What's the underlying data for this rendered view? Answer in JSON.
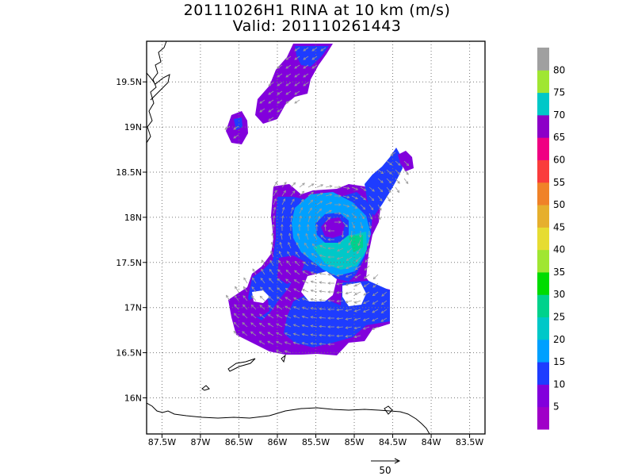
{
  "title_line1": "20111026H1 RINA at 10 km (m/s)",
  "title_line2": "Valid: 201110261443",
  "map": {
    "lon_range": [
      -87.7,
      -83.3
    ],
    "lat_range": [
      15.6,
      19.95
    ],
    "lon_ticks": [
      {
        "v": -87.5,
        "label": "87.5W"
      },
      {
        "v": -87.0,
        "label": "87W"
      },
      {
        "v": -86.5,
        "label": "86.5W"
      },
      {
        "v": -86.0,
        "label": "86W"
      },
      {
        "v": -85.5,
        "label": "85.5W"
      },
      {
        "v": -85.0,
        "label": "85W"
      },
      {
        "v": -84.5,
        "label": "84.5W"
      },
      {
        "v": -84.0,
        "label": "84W"
      },
      {
        "v": -83.5,
        "label": "83.5W"
      }
    ],
    "lat_ticks": [
      {
        "v": 16.0,
        "label": "16N"
      },
      {
        "v": 16.5,
        "label": "16.5N"
      },
      {
        "v": 17.0,
        "label": "17N"
      },
      {
        "v": 17.5,
        "label": "17.5N"
      },
      {
        "v": 18.0,
        "label": "18N"
      },
      {
        "v": 18.5,
        "label": "18.5N"
      },
      {
        "v": 19.0,
        "label": "19N"
      },
      {
        "v": 19.5,
        "label": "19.5N"
      }
    ],
    "gridlines": true
  },
  "colorbar": {
    "labels": [
      "5",
      "10",
      "15",
      "20",
      "25",
      "30",
      "35",
      "40",
      "45",
      "50",
      "55",
      "60",
      "65",
      "70",
      "75",
      "80"
    ],
    "colors": [
      "#a000c8",
      "#8200dc",
      "#1e3cff",
      "#00a0ff",
      "#00c8c8",
      "#00d28c",
      "#00dc00",
      "#a0e632",
      "#e6dc32",
      "#e6af2d",
      "#f08228",
      "#fa3c3c",
      "#f00082",
      "#8c00c8",
      "#00c8c8",
      "#a0e632",
      "#a0a0a0"
    ]
  },
  "vector_key": {
    "label": "50"
  }
}
